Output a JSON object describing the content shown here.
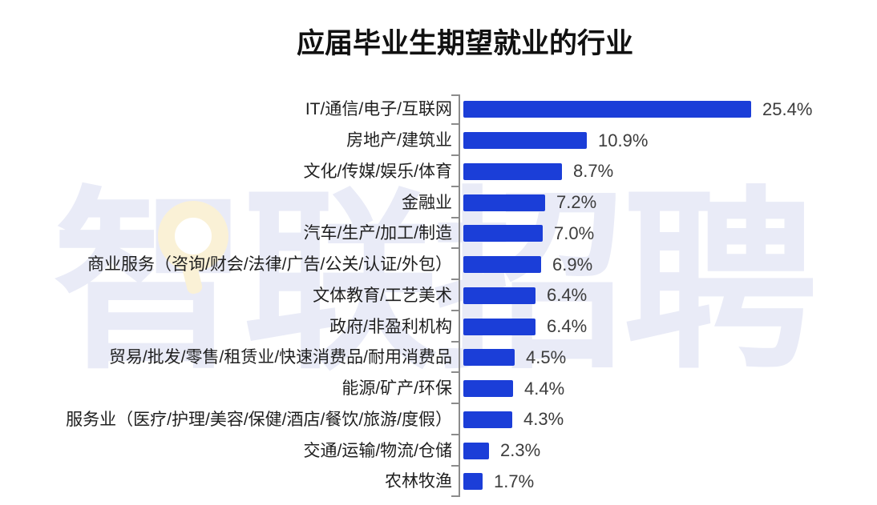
{
  "title": "应届毕业生期望就业的行业",
  "watermark": {
    "text": "智联招聘",
    "text_color": "#e9ebf7",
    "logo_ring_color": "#faf1d6"
  },
  "colors": {
    "bar": "#1b3ed8",
    "axis": "#8c8c8c",
    "title": "#111111",
    "category_label": "#1f1f1f",
    "value_label": "#3c3c3c",
    "background": "#ffffff"
  },
  "chart_data": {
    "type": "bar",
    "orientation": "horizontal",
    "title": "应届毕业生期望就业的行业",
    "categories": [
      "IT/通信/电子/互联网",
      "房地产/建筑业",
      "文化/传媒/娱乐/体育",
      "金融业",
      "汽车/生产/加工/制造",
      "商业服务（咨询/财会/法律/广告/公关/认证/外包）",
      "文体教育/工艺美术",
      "政府/非盈利机构",
      "贸易/批发/零售/租赁业/快速消费品/耐用消费品",
      "能源/矿产/环保",
      "服务业（医疗/护理/美容/保健/酒店/餐饮/旅游/度假）",
      "交通/运输/物流/仓储",
      "农林牧渔"
    ],
    "values": [
      25.4,
      10.9,
      8.7,
      7.2,
      7.0,
      6.9,
      6.4,
      6.4,
      4.5,
      4.4,
      4.3,
      2.3,
      1.7
    ],
    "value_labels": [
      "25.4%",
      "10.9%",
      "8.7%",
      "7.2%",
      "7.0%",
      "6.9%",
      "6.4%",
      "6.4%",
      "4.5%",
      "4.4%",
      "4.3%",
      "2.3%",
      "1.7%"
    ],
    "unit": "%",
    "xlim": [
      0,
      27
    ],
    "grid": false,
    "legend": false,
    "ylabel": "",
    "xlabel": ""
  }
}
